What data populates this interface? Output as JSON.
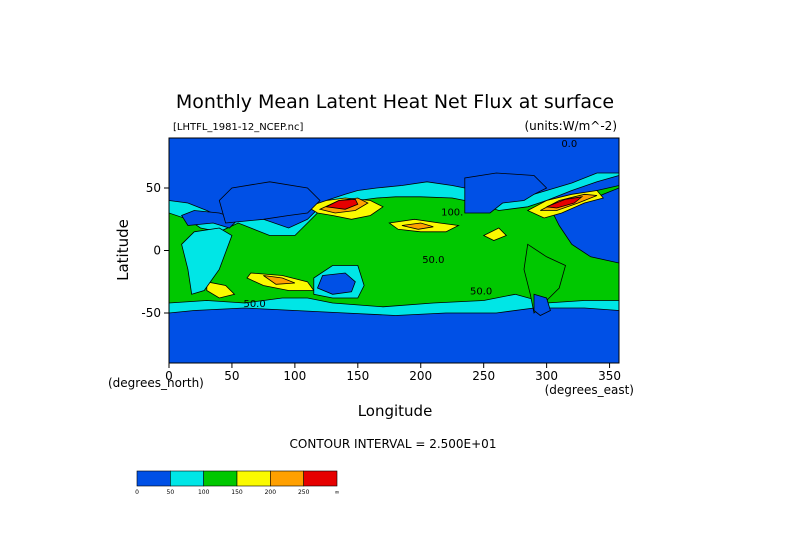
{
  "chart_data": {
    "type": "heatmap",
    "title": "Monthly Mean Latent Heat Net Flux at surface",
    "file_label": "[LHTFL_1981-12_NCEP.nc]",
    "units_label": "(units:W/m^-2)",
    "xlabel": "Longitude",
    "ylabel": "Latitude",
    "x_unit_label": "(degrees_east)",
    "y_unit_label": "(degrees_north)",
    "xlim": [
      0,
      357.5
    ],
    "ylim": [
      -90,
      90
    ],
    "x_ticks": [
      0,
      50,
      100,
      150,
      200,
      250,
      300,
      350
    ],
    "y_ticks": [
      -50,
      0,
      50
    ],
    "contour_interval_label": "CONTOUR INTERVAL = 2.500E+01",
    "colorbar": {
      "colors": [
        "#0050e6",
        "#00e6e6",
        "#00c800",
        "#fafa00",
        "#ffa000",
        "#e60000"
      ],
      "tick_labels": [
        "0",
        "50",
        "100",
        "150",
        "200",
        "250",
        "∞"
      ],
      "tick_values": [
        0,
        50,
        100,
        150,
        200,
        250,
        300
      ]
    },
    "contour_labels": [
      {
        "text": "0.0",
        "lon": 318,
        "lat": 83
      },
      {
        "text": "50.0",
        "lon": 68,
        "lat": -45
      },
      {
        "text": "50.0",
        "lon": 248,
        "lat": -35
      },
      {
        "text": "50.0",
        "lon": 210,
        "lat": -10
      },
      {
        "text": "100.",
        "lon": 225,
        "lat": 28
      }
    ],
    "regions": [
      {
        "level": 0,
        "poly": [
          [
            0,
            -90
          ],
          [
            357.5,
            -90
          ],
          [
            357.5,
            90
          ],
          [
            0,
            90
          ]
        ]
      },
      {
        "level": 1,
        "poly": [
          [
            0,
            -50
          ],
          [
            20,
            -48
          ],
          [
            60,
            -46
          ],
          [
            100,
            -48
          ],
          [
            140,
            -50
          ],
          [
            180,
            -52
          ],
          [
            220,
            -50
          ],
          [
            260,
            -50
          ],
          [
            290,
            -46
          ],
          [
            330,
            -46
          ],
          [
            357.5,
            -48
          ],
          [
            357.5,
            -22
          ],
          [
            335,
            -15
          ],
          [
            315,
            -10
          ],
          [
            300,
            5
          ],
          [
            290,
            28
          ],
          [
            295,
            38
          ],
          [
            305,
            42
          ],
          [
            320,
            48
          ],
          [
            340,
            55
          ],
          [
            357.5,
            60
          ],
          [
            357.5,
            62
          ],
          [
            340,
            62
          ],
          [
            320,
            54
          ],
          [
            300,
            48
          ],
          [
            280,
            42
          ],
          [
            265,
            45
          ],
          [
            245,
            48
          ],
          [
            225,
            52
          ],
          [
            205,
            55
          ],
          [
            185,
            52
          ],
          [
            165,
            50
          ],
          [
            150,
            48
          ],
          [
            140,
            45
          ],
          [
            125,
            40
          ],
          [
            110,
            25
          ],
          [
            95,
            18
          ],
          [
            75,
            25
          ],
          [
            60,
            28
          ],
          [
            45,
            25
          ],
          [
            30,
            32
          ],
          [
            15,
            38
          ],
          [
            0,
            40
          ]
        ]
      },
      {
        "level": 2,
        "poly": [
          [
            0,
            -42
          ],
          [
            30,
            -40
          ],
          [
            60,
            -42
          ],
          [
            90,
            -38
          ],
          [
            110,
            -38
          ],
          [
            130,
            -42
          ],
          [
            170,
            -45
          ],
          [
            210,
            -42
          ],
          [
            250,
            -40
          ],
          [
            275,
            -35
          ],
          [
            300,
            -42
          ],
          [
            330,
            -40
          ],
          [
            357.5,
            -40
          ],
          [
            357.5,
            -10
          ],
          [
            335,
            -5
          ],
          [
            320,
            5
          ],
          [
            310,
            20
          ],
          [
            305,
            30
          ],
          [
            315,
            36
          ],
          [
            330,
            38
          ],
          [
            345,
            45
          ],
          [
            357.5,
            50
          ],
          [
            357.5,
            52
          ],
          [
            340,
            48
          ],
          [
            320,
            42
          ],
          [
            300,
            40
          ],
          [
            285,
            35
          ],
          [
            262,
            32
          ],
          [
            245,
            38
          ],
          [
            225,
            42
          ],
          [
            200,
            43
          ],
          [
            180,
            43
          ],
          [
            165,
            42
          ],
          [
            150,
            40
          ],
          [
            135,
            38
          ],
          [
            120,
            32
          ],
          [
            110,
            22
          ],
          [
            100,
            12
          ],
          [
            80,
            12
          ],
          [
            65,
            18
          ],
          [
            55,
            22
          ],
          [
            40,
            15
          ],
          [
            25,
            18
          ],
          [
            15,
            25
          ],
          [
            0,
            30
          ]
        ]
      },
      {
        "level": 3,
        "poly": [
          [
            110,
            35
          ],
          [
            125,
            40
          ],
          [
            140,
            42
          ],
          [
            160,
            40
          ],
          [
            170,
            35
          ],
          [
            160,
            28
          ],
          [
            145,
            25
          ],
          [
            130,
            28
          ],
          [
            118,
            30
          ]
        ]
      },
      {
        "level": 3,
        "poly": [
          [
            285,
            32
          ],
          [
            300,
            40
          ],
          [
            320,
            45
          ],
          [
            340,
            48
          ],
          [
            345,
            42
          ],
          [
            330,
            38
          ],
          [
            312,
            30
          ],
          [
            298,
            26
          ]
        ]
      },
      {
        "level": 3,
        "poly": [
          [
            175,
            22
          ],
          [
            195,
            25
          ],
          [
            215,
            22
          ],
          [
            230,
            20
          ],
          [
            220,
            15
          ],
          [
            200,
            15
          ],
          [
            182,
            17
          ]
        ]
      },
      {
        "level": 3,
        "poly": [
          [
            65,
            -18
          ],
          [
            90,
            -20
          ],
          [
            110,
            -25
          ],
          [
            115,
            -32
          ],
          [
            95,
            -32
          ],
          [
            75,
            -28
          ],
          [
            62,
            -22
          ]
        ]
      },
      {
        "level": 3,
        "poly": [
          [
            30,
            -25
          ],
          [
            45,
            -28
          ],
          [
            52,
            -35
          ],
          [
            40,
            -38
          ],
          [
            30,
            -32
          ]
        ]
      },
      {
        "level": 3,
        "poly": [
          [
            250,
            12
          ],
          [
            262,
            18
          ],
          [
            268,
            12
          ],
          [
            258,
            8
          ]
        ]
      },
      {
        "level": 4,
        "poly": [
          [
            120,
            33
          ],
          [
            135,
            40
          ],
          [
            150,
            42
          ],
          [
            158,
            38
          ],
          [
            148,
            32
          ],
          [
            132,
            30
          ]
        ]
      },
      {
        "level": 4,
        "poly": [
          [
            295,
            32
          ],
          [
            310,
            40
          ],
          [
            330,
            45
          ],
          [
            340,
            44
          ],
          [
            325,
            38
          ],
          [
            308,
            32
          ]
        ]
      },
      {
        "level": 4,
        "poly": [
          [
            185,
            20
          ],
          [
            200,
            22
          ],
          [
            210,
            19
          ],
          [
            198,
            17
          ]
        ]
      },
      {
        "level": 4,
        "poly": [
          [
            75,
            -20
          ],
          [
            90,
            -22
          ],
          [
            100,
            -26
          ],
          [
            85,
            -27
          ]
        ]
      },
      {
        "level": 5,
        "poly": [
          [
            125,
            35
          ],
          [
            135,
            40
          ],
          [
            148,
            41
          ],
          [
            150,
            37
          ],
          [
            140,
            33
          ]
        ]
      },
      {
        "level": 5,
        "poly": [
          [
            300,
            35
          ],
          [
            315,
            41
          ],
          [
            328,
            43
          ],
          [
            322,
            38
          ],
          [
            308,
            34
          ]
        ]
      },
      {
        "level": 1,
        "poly": [
          [
            150,
            -12
          ],
          [
            155,
            -28
          ],
          [
            150,
            -38
          ],
          [
            130,
            -38
          ],
          [
            115,
            -35
          ],
          [
            115,
            -22
          ],
          [
            130,
            -12
          ]
        ]
      },
      {
        "level": 0,
        "poly": [
          [
            122,
            -20
          ],
          [
            140,
            -18
          ],
          [
            148,
            -25
          ],
          [
            145,
            -33
          ],
          [
            130,
            -35
          ],
          [
            118,
            -30
          ]
        ]
      },
      {
        "level": 1,
        "poly": [
          [
            18,
            -35
          ],
          [
            28,
            -32
          ],
          [
            40,
            -15
          ],
          [
            50,
            12
          ],
          [
            40,
            18
          ],
          [
            20,
            15
          ],
          [
            10,
            5
          ],
          [
            15,
            -15
          ]
        ]
      },
      {
        "level": 0,
        "poly": [
          [
            15,
            20
          ],
          [
            35,
            22
          ],
          [
            48,
            18
          ],
          [
            55,
            25
          ],
          [
            40,
            30
          ],
          [
            20,
            32
          ],
          [
            10,
            28
          ]
        ]
      },
      {
        "level": 0,
        "poly": [
          [
            45,
            22
          ],
          [
            75,
            25
          ],
          [
            95,
            28
          ],
          [
            110,
            30
          ],
          [
            120,
            40
          ],
          [
            110,
            50
          ],
          [
            80,
            55
          ],
          [
            50,
            50
          ],
          [
            40,
            40
          ]
        ]
      },
      {
        "level": 2,
        "poly": [
          [
            285,
            5
          ],
          [
            300,
            -5
          ],
          [
            315,
            -12
          ],
          [
            310,
            -30
          ],
          [
            300,
            -40
          ],
          [
            290,
            -50
          ],
          [
            287,
            -35
          ],
          [
            282,
            -15
          ]
        ]
      },
      {
        "level": 0,
        "poly": [
          [
            290,
            -35
          ],
          [
            300,
            -38
          ],
          [
            303,
            -48
          ],
          [
            295,
            -52
          ],
          [
            290,
            -48
          ]
        ]
      },
      {
        "level": 0,
        "poly": [
          [
            235,
            30
          ],
          [
            255,
            30
          ],
          [
            265,
            38
          ],
          [
            282,
            40
          ],
          [
            290,
            45
          ],
          [
            300,
            50
          ],
          [
            290,
            60
          ],
          [
            260,
            62
          ],
          [
            235,
            58
          ]
        ]
      }
    ]
  }
}
